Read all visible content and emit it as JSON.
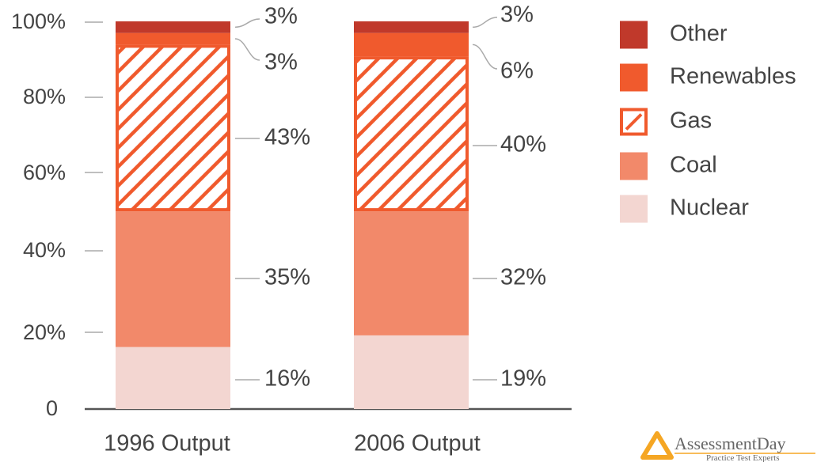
{
  "chart_data": {
    "type": "bar",
    "stacked": true,
    "categories": [
      "1996 Output",
      "2006 Output"
    ],
    "series": [
      {
        "name": "Nuclear",
        "values": [
          16,
          19
        ],
        "color": "#f3d6d1",
        "pattern": "solid"
      },
      {
        "name": "Coal",
        "values": [
          35,
          32
        ],
        "color": "#f2896a",
        "pattern": "solid"
      },
      {
        "name": "Gas",
        "values": [
          43,
          40
        ],
        "color": "#f05a2d",
        "pattern": "hatch"
      },
      {
        "name": "Renewables",
        "values": [
          3,
          6
        ],
        "color": "#f05a2d",
        "pattern": "solid"
      },
      {
        "name": "Other",
        "values": [
          3,
          3
        ],
        "color": "#c0392b",
        "pattern": "solid"
      }
    ],
    "data_labels": [
      [
        "16%",
        "35%",
        "43%",
        "3%",
        "3%"
      ],
      [
        "19%",
        "32%",
        "40%",
        "6%",
        "3%"
      ]
    ],
    "y_ticks": [
      {
        "value": 0,
        "label": "0"
      },
      {
        "value": 20,
        "label": "20%"
      },
      {
        "value": 40,
        "label": "40%"
      },
      {
        "value": 60,
        "label": "60%"
      },
      {
        "value": 80,
        "label": "80%"
      },
      {
        "value": 100,
        "label": "100%"
      }
    ],
    "ylim": [
      0,
      100
    ],
    "title": "",
    "xlabel": "",
    "ylabel": "",
    "legend_position": "right",
    "legend_order": [
      "Other",
      "Renewables",
      "Gas",
      "Coal",
      "Nuclear"
    ],
    "grid": false
  },
  "logo": {
    "name": "AssessmentDay",
    "tagline": "Practice Test Experts",
    "icon": "triangle-logo-icon"
  }
}
